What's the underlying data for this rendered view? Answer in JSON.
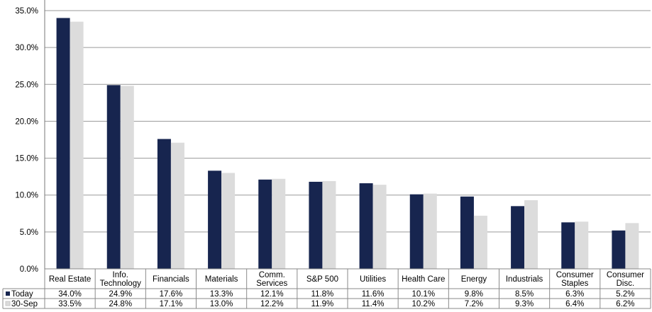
{
  "chart_data": {
    "type": "bar",
    "categories": [
      [
        "Real Estate"
      ],
      [
        "Info.",
        "Technology"
      ],
      [
        "Financials"
      ],
      [
        "Materials"
      ],
      [
        "Comm.",
        "Services"
      ],
      [
        "S&P 500"
      ],
      [
        "Utilities"
      ],
      [
        "Health Care"
      ],
      [
        "Energy"
      ],
      [
        "Industrials"
      ],
      [
        "Consumer",
        "Staples"
      ],
      [
        "Consumer",
        "Disc."
      ]
    ],
    "series": [
      {
        "name": "Today",
        "color": "#17254f",
        "values": [
          34.0,
          24.9,
          17.6,
          13.3,
          12.1,
          11.8,
          11.6,
          10.1,
          9.8,
          8.5,
          6.3,
          5.2
        ],
        "labels": [
          "34.0%",
          "24.9%",
          "17.6%",
          "13.3%",
          "12.1%",
          "11.8%",
          "11.6%",
          "10.1%",
          "9.8%",
          "8.5%",
          "6.3%",
          "5.2%"
        ]
      },
      {
        "name": "30-Sep",
        "color": "#dcdcdc",
        "values": [
          33.5,
          24.8,
          17.1,
          13.0,
          12.2,
          11.9,
          11.4,
          10.2,
          7.2,
          9.3,
          6.4,
          6.2
        ],
        "labels": [
          "33.5%",
          "24.8%",
          "17.1%",
          "13.0%",
          "12.2%",
          "11.9%",
          "11.4%",
          "10.2%",
          "7.2%",
          "9.3%",
          "6.4%",
          "6.2%"
        ]
      }
    ],
    "yticks": [
      {
        "value": 0,
        "label": "0.0%"
      },
      {
        "value": 5,
        "label": "5.0%"
      },
      {
        "value": 10,
        "label": "10.0%"
      },
      {
        "value": 15,
        "label": "15.0%"
      },
      {
        "value": 20,
        "label": "20.0%"
      },
      {
        "value": 25,
        "label": "25.0%"
      },
      {
        "value": 30,
        "label": "30.0%"
      },
      {
        "value": 35,
        "label": "35.0%"
      }
    ],
    "ylim": [
      0,
      35
    ],
    "grid": true,
    "legend": "data-table"
  }
}
